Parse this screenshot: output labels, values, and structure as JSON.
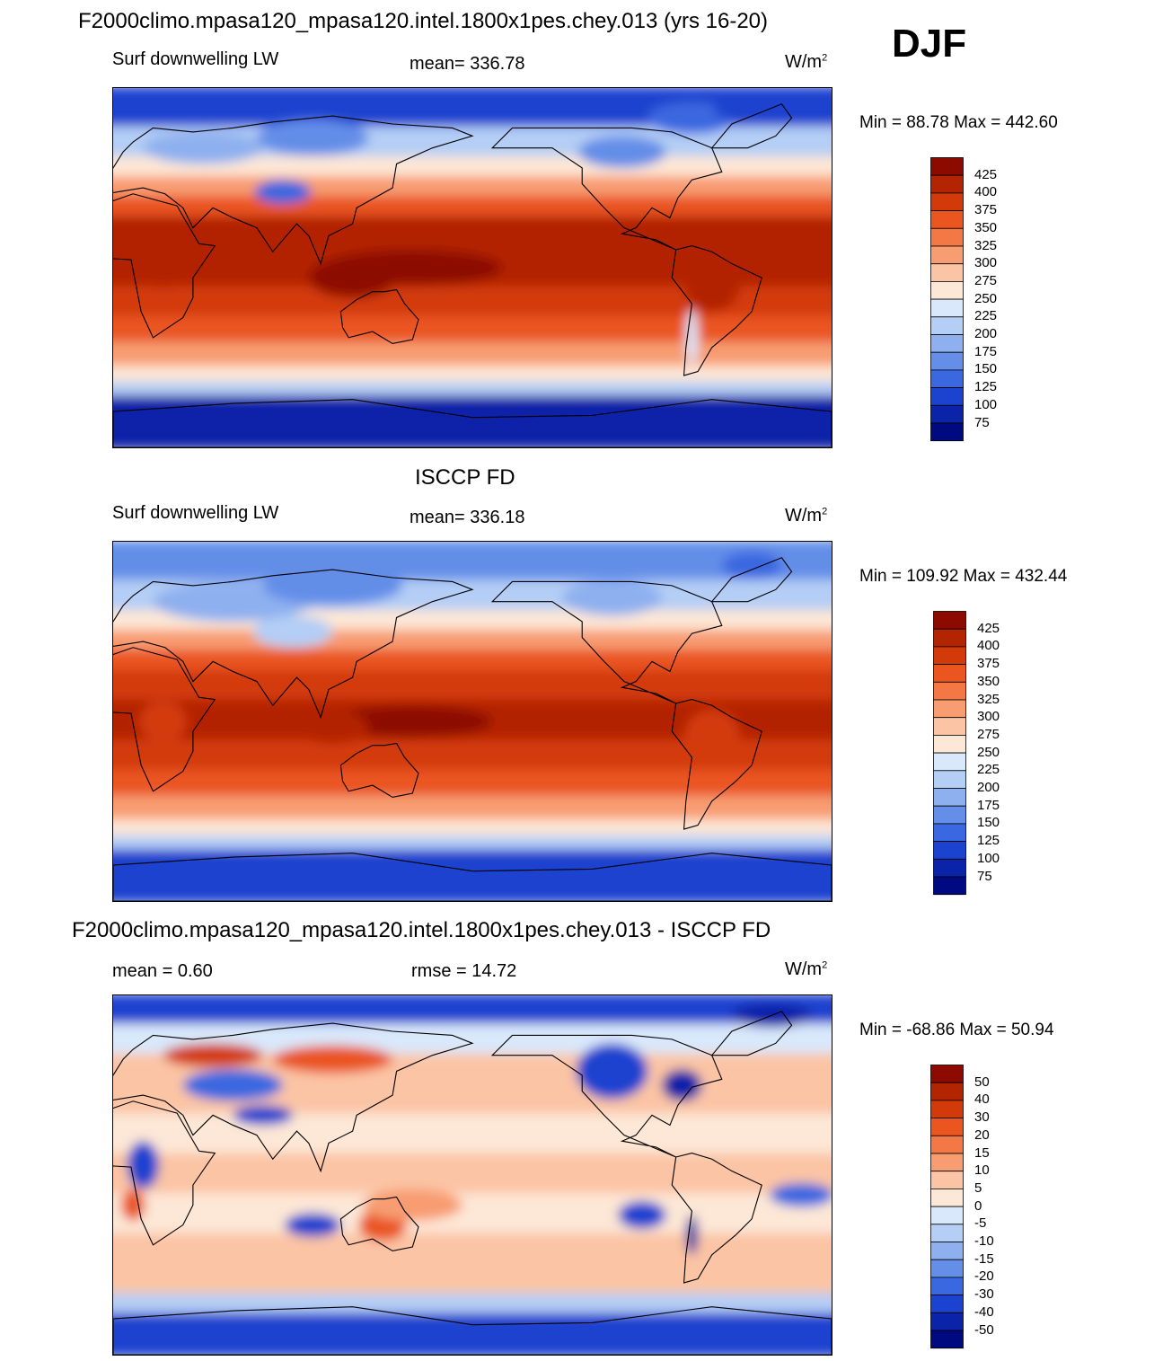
{
  "header": {
    "main_title": "F2000climo.mpasa120_mpasa120.intel.1800x1pes.chey.013 (yrs 16-20)",
    "season": "DJF"
  },
  "chart_data": [
    {
      "type": "heatmap",
      "title": "F2000climo.mpasa120_mpasa120.intel.1800x1pes.chey.013 (yrs 16-20)",
      "variable": "Surf downwelling LW",
      "stat_label": "mean=",
      "stat_value": "336.78",
      "units": "W/m",
      "units_sup": "2",
      "minmax": "Min =  88.78 Max = 442.60",
      "colorbar_labels": [
        "425",
        "400",
        "375",
        "350",
        "325",
        "300",
        "275",
        "250",
        "225",
        "200",
        "175",
        "150",
        "125",
        "100",
        "75"
      ],
      "colors": [
        "#8c0a00",
        "#b32400",
        "#d33a0a",
        "#ea5520",
        "#f47845",
        "#f89c72",
        "#fbc4a4",
        "#fde7d6",
        "#d9e8fb",
        "#b4cef5",
        "#8eb0ef",
        "#648ee8",
        "#3a68e0",
        "#1c43cf",
        "#0b23a8",
        "#000a80"
      ]
    },
    {
      "type": "heatmap",
      "title": "ISCCP FD",
      "variable": "Surf downwelling LW",
      "stat_label": "mean=",
      "stat_value": "336.18",
      "units": "W/m",
      "units_sup": "2",
      "minmax": "Min = 109.92 Max = 432.44",
      "colorbar_labels": [
        "425",
        "400",
        "375",
        "350",
        "325",
        "300",
        "275",
        "250",
        "225",
        "200",
        "175",
        "150",
        "125",
        "100",
        "75"
      ],
      "colors": [
        "#8c0a00",
        "#b32400",
        "#d33a0a",
        "#ea5520",
        "#f47845",
        "#f89c72",
        "#fbc4a4",
        "#fde7d6",
        "#d9e8fb",
        "#b4cef5",
        "#8eb0ef",
        "#648ee8",
        "#3a68e0",
        "#1c43cf",
        "#0b23a8",
        "#000a80"
      ]
    },
    {
      "type": "heatmap",
      "title": "F2000climo.mpasa120_mpasa120.intel.1800x1pes.chey.013 - ISCCP FD",
      "variable": "mean =   0.60",
      "stat_label": "rmse =",
      "stat_value": "14.72",
      "units": "W/m",
      "units_sup": "2",
      "minmax": "Min = -68.86 Max =  50.94",
      "colorbar_labels": [
        "50",
        "40",
        "30",
        "20",
        "15",
        "10",
        "5",
        "0",
        "-5",
        "-10",
        "-15",
        "-20",
        "-30",
        "-40",
        "-50"
      ],
      "colors": [
        "#8c0a00",
        "#b32400",
        "#d33a0a",
        "#ea5520",
        "#f47845",
        "#f89c72",
        "#fbc4a4",
        "#fde7d6",
        "#d9e8fb",
        "#b4cef5",
        "#8eb0ef",
        "#648ee8",
        "#3a68e0",
        "#1c43cf",
        "#0b23a8",
        "#000a80"
      ]
    }
  ]
}
